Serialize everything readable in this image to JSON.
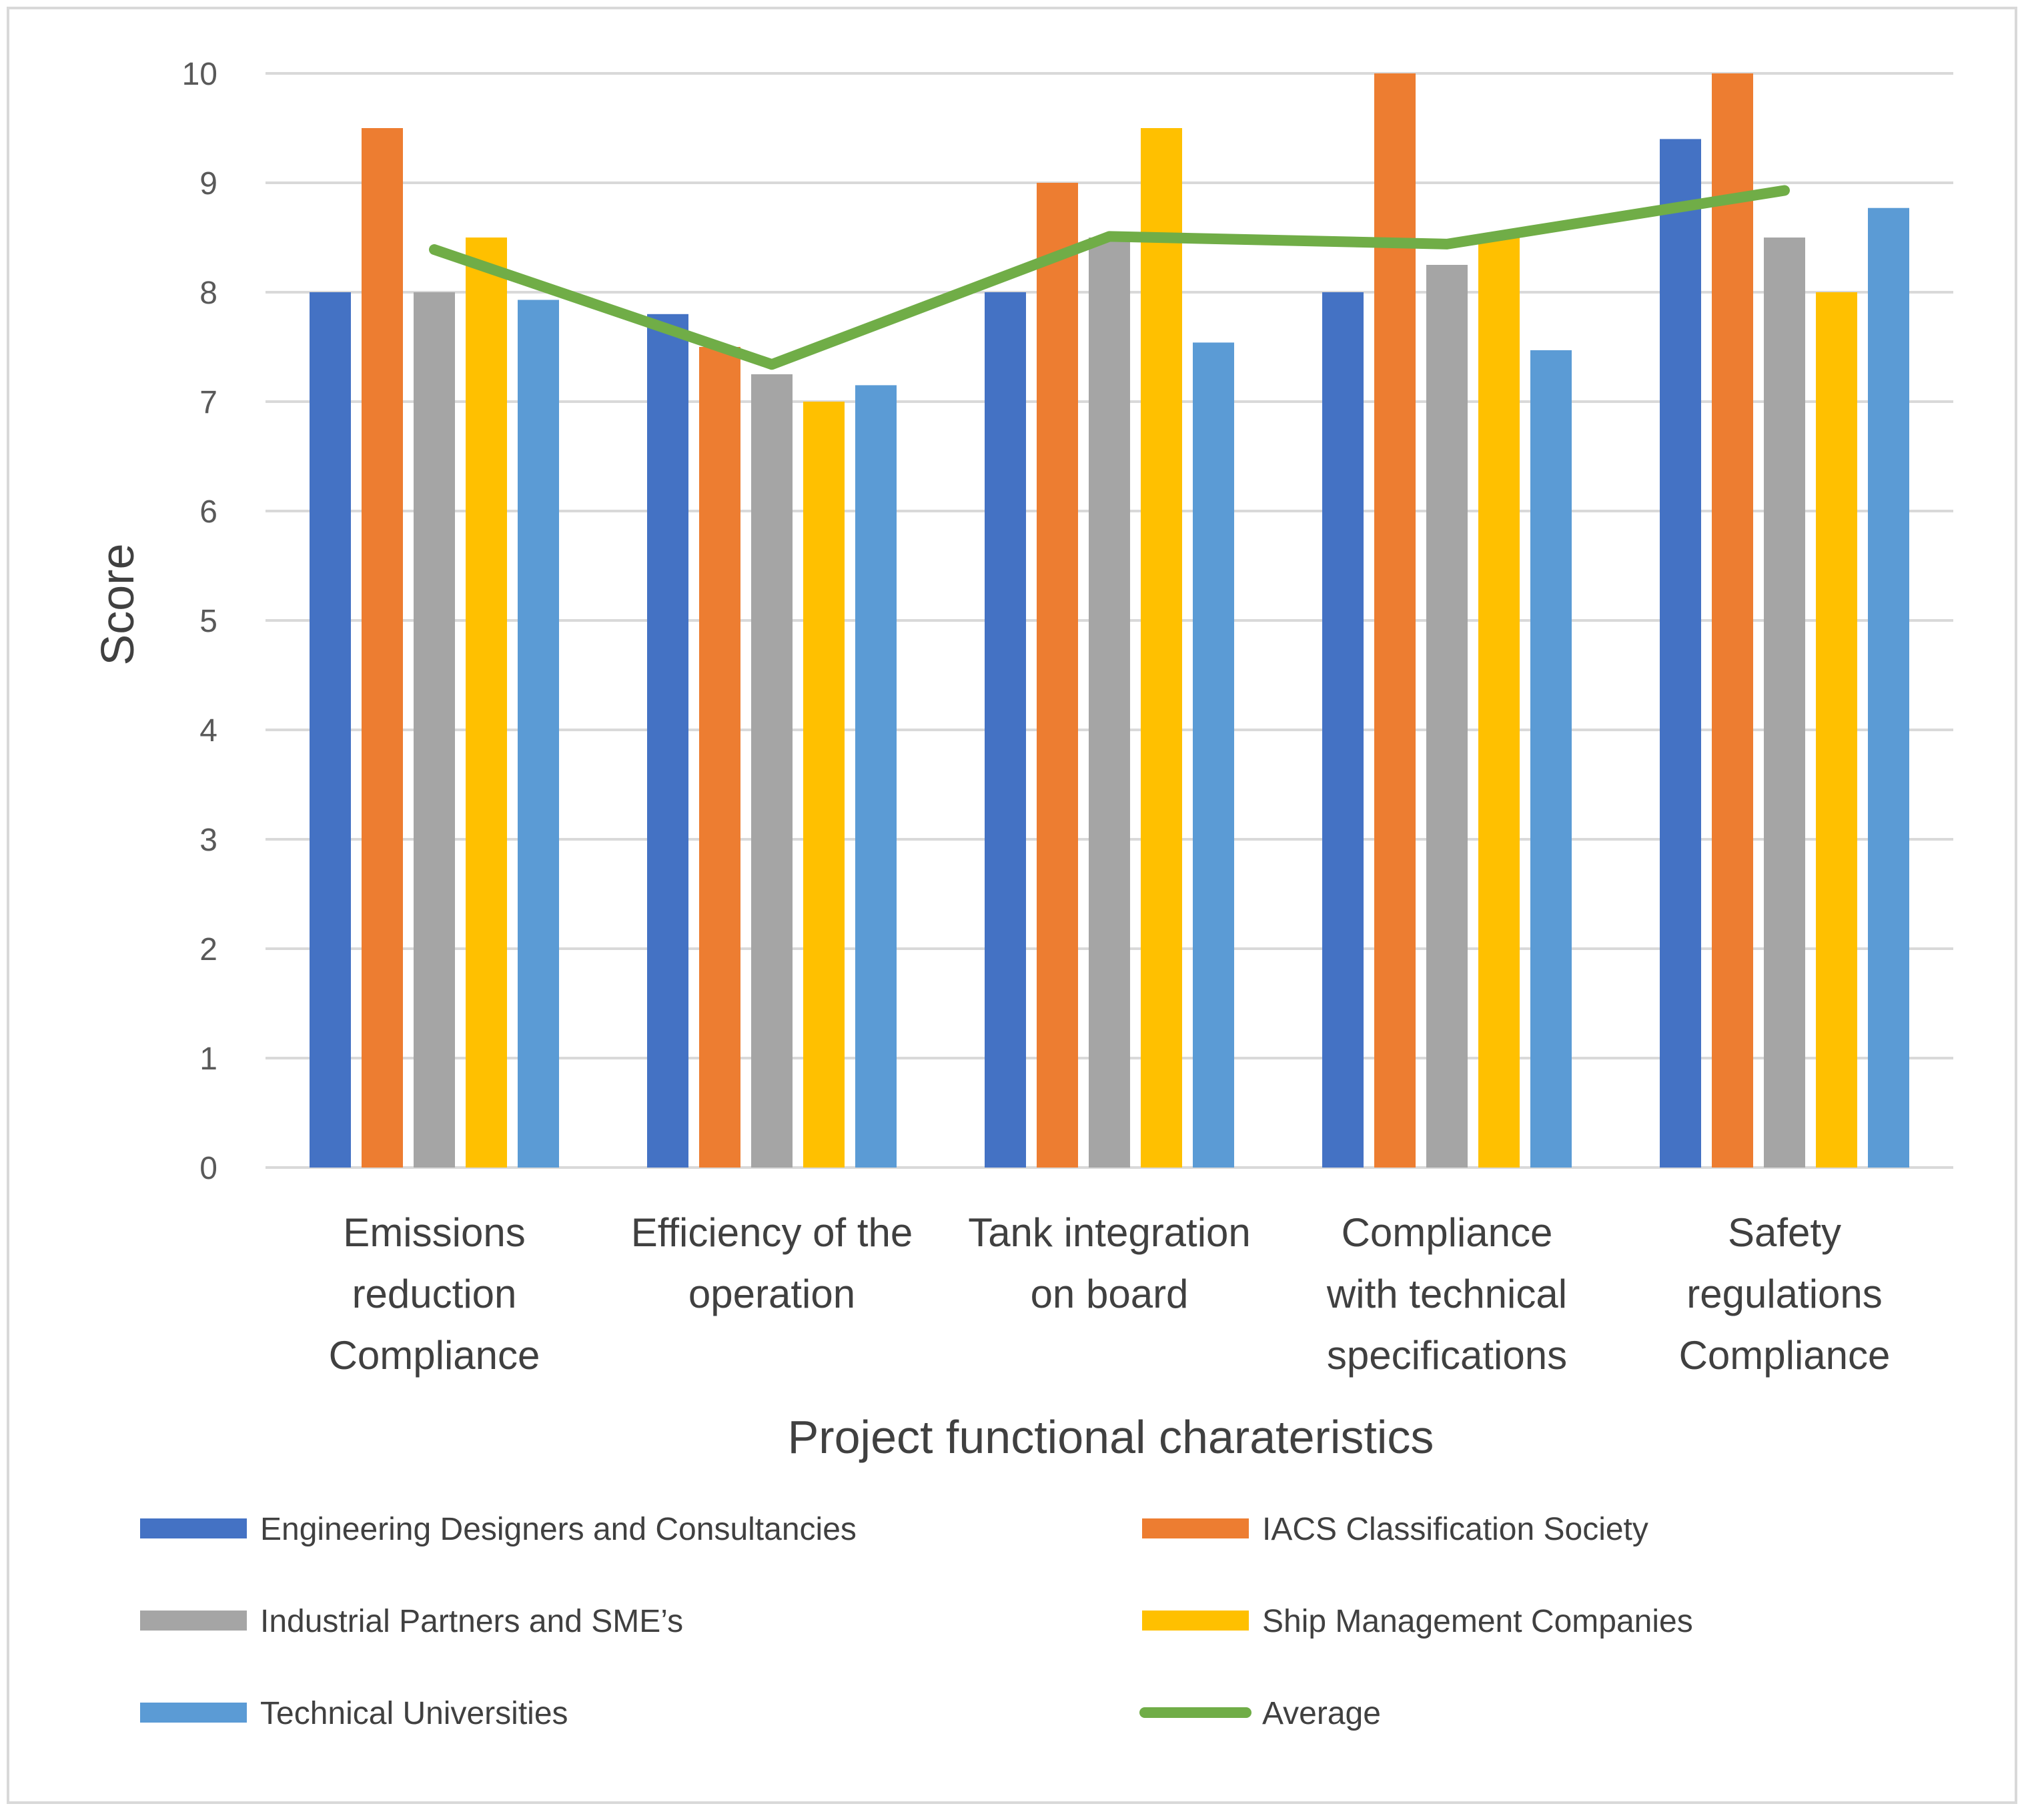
{
  "chart_data": {
    "type": "bar",
    "title": "",
    "xlabel": "Project functional charateristics",
    "ylabel": "Score",
    "ylim": [
      0,
      10
    ],
    "yticks": [
      0,
      1,
      2,
      3,
      4,
      5,
      6,
      7,
      8,
      9,
      10
    ],
    "grid": true,
    "legend_position": "bottom",
    "categories": [
      [
        "Emissions",
        "reduction",
        "Compliance"
      ],
      [
        "Efficiency of the",
        "operation"
      ],
      [
        "Tank integration",
        "on board"
      ],
      [
        "Compliance",
        "with technical",
        "specifications"
      ],
      [
        "Safety",
        "regulations",
        "Compliance"
      ]
    ],
    "series": [
      {
        "name": "Engineering Designers and Consultancies",
        "type": "bar",
        "color": "#4472C4",
        "values": [
          8.0,
          7.8,
          8.0,
          8.0,
          9.4
        ]
      },
      {
        "name": "IACS Classification Society",
        "type": "bar",
        "color": "#ED7D31",
        "values": [
          9.5,
          7.5,
          9.0,
          10.0,
          10.0
        ]
      },
      {
        "name": "Industrial Partners and SME’s",
        "type": "bar",
        "color": "#A5A5A5",
        "values": [
          8.0,
          7.25,
          8.5,
          8.25,
          8.5
        ]
      },
      {
        "name": "Ship Management Companies",
        "type": "bar",
        "color": "#FFC000",
        "values": [
          8.5,
          7.0,
          9.5,
          8.5,
          8.0
        ]
      },
      {
        "name": "Technical Universities",
        "type": "bar",
        "color": "#5B9BD5",
        "values": [
          7.93,
          7.15,
          7.54,
          7.47,
          8.77
        ]
      },
      {
        "name": "Average",
        "type": "line",
        "color": "#70AD47",
        "values": [
          8.39,
          7.34,
          8.51,
          8.44,
          8.93
        ]
      }
    ]
  }
}
